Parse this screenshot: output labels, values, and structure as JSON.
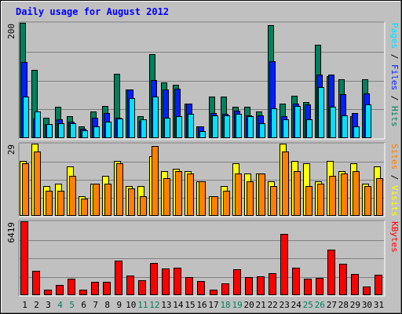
{
  "chart_data": {
    "type": "bar",
    "title": "Daily usage for August 2012",
    "categories": [
      "1",
      "2",
      "3",
      "4",
      "5",
      "6",
      "7",
      "8",
      "9",
      "10",
      "11",
      "12",
      "13",
      "14",
      "15",
      "16",
      "17",
      "18",
      "19",
      "20",
      "21",
      "22",
      "23",
      "24",
      "25",
      "26",
      "27",
      "28",
      "29",
      "30",
      "31"
    ],
    "weekend_days": [
      "4",
      "5",
      "11",
      "12",
      "18",
      "19",
      "25",
      "26"
    ],
    "panels": [
      {
        "name": "requests",
        "ylabel_parts": [
          "Pages",
          "Files",
          "Hits"
        ],
        "ymax": 200,
        "ymax_label": "200",
        "series": [
          {
            "name": "Hits",
            "color": "#00805c",
            "values": [
              200,
              118,
              36,
              54,
              38,
              20,
              46,
              56,
              112,
              84,
              38,
              146,
              96,
              92,
              60,
              20,
              72,
              72,
              54,
              54,
              46,
              196,
              60,
              74,
              62,
              162,
              108,
              102,
              38,
              102,
              0
            ]
          },
          {
            "name": "Files",
            "color": "#0020ff",
            "values": [
              132,
              34,
              24,
              32,
              28,
              16,
              36,
              44,
              36,
              84,
              30,
              100,
              84,
              86,
              60,
              20,
              44,
              42,
              48,
              40,
              40,
              134,
              38,
              60,
              58,
              110,
              110,
              76,
              44,
              78,
              0
            ]
          },
          {
            "name": "Pages",
            "color": "#00e0ff",
            "values": [
              72,
              46,
              24,
              26,
              26,
              14,
              20,
              28,
              34,
              70,
              32,
              72,
              36,
              38,
              42,
              12,
              40,
              40,
              42,
              38,
              26,
              52,
              32,
              56,
              32,
              88,
              54,
              40,
              20,
              58,
              0
            ]
          }
        ]
      },
      {
        "name": "visits",
        "ylabel_parts": [
          "Sites",
          "Visits"
        ],
        "ymax": 29,
        "ymax_label": "29",
        "series": [
          {
            "name": "Visits",
            "color": "#ffff00",
            "values": [
              22,
              29,
              12,
              13,
              20,
              8,
              13,
              16,
              22,
              12,
              12,
              24,
              18,
              19,
              18,
              14,
              8,
              12,
              21,
              17,
              17,
              14,
              29,
              22,
              21,
              14,
              22,
              18,
              21,
              13,
              20
            ]
          },
          {
            "name": "Sites",
            "color": "#ff8000",
            "values": [
              21,
              26,
              10,
              10,
              16,
              7,
              13,
              13,
              21,
              11,
              8,
              28,
              15,
              18,
              17,
              14,
              8,
              10,
              17,
              14,
              17,
              12,
              26,
              18,
              12,
              13,
              16,
              17,
              18,
              12,
              15
            ]
          }
        ]
      },
      {
        "name": "kbytes",
        "ylabel_parts": [
          "KBytes"
        ],
        "ymax": 6419,
        "ymax_label": "6419",
        "series": [
          {
            "name": "KBytes",
            "color": "#ff0000",
            "values": [
              6419,
              2100,
              500,
              900,
              1400,
              500,
              1150,
              1150,
              3000,
              1700,
              1300,
              2800,
              2350,
              2400,
              1600,
              1200,
              500,
              1000,
              2250,
              1550,
              1650,
              1900,
              5300,
              2400,
              1400,
              1500,
              3950,
              2750,
              1850,
              750,
              1750
            ]
          }
        ]
      }
    ]
  },
  "colors": {
    "background": "#c0c0c0",
    "plot_area": "#c0c0c0",
    "title": "#0000ff",
    "weekday_label": "#000000",
    "weekend_label": "#008060"
  }
}
